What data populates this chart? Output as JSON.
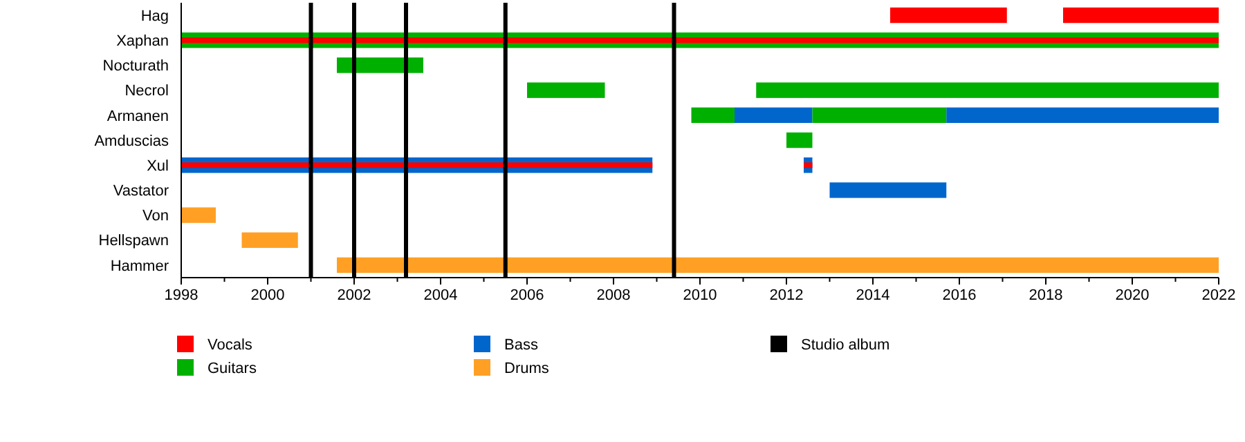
{
  "chart_data": {
    "type": "bar",
    "orientation": "horizontal",
    "categories": [
      "Hag",
      "Xaphan",
      "Nocturath",
      "Necrol",
      "Armanen",
      "Amduscias",
      "Xul",
      "Vastator",
      "Von",
      "Hellspawn",
      "Hammer"
    ],
    "series": [
      {
        "name": "Vocals",
        "color": "#ff0000",
        "values": [
          2.7,
          24,
          null,
          null,
          null,
          null,
          10.9,
          null,
          null,
          null,
          null
        ],
        "base": [
          2014.4,
          1998,
          null,
          null,
          null,
          null,
          1998,
          null,
          null,
          null,
          null
        ]
      },
      {
        "name": "Guitars",
        "color": "#00b000",
        "values": [
          null,
          24,
          2.0,
          1.8,
          1.0,
          0.6,
          null,
          null,
          null,
          null,
          null
        ],
        "base": [
          null,
          1998,
          2001.6,
          2006.0,
          2009.8,
          2012.0,
          null,
          null,
          null,
          null,
          null
        ]
      },
      {
        "name": "Bass",
        "color": "#0066cc",
        "values": [
          null,
          null,
          null,
          null,
          1.8,
          null,
          10.9,
          2.7,
          null,
          null,
          null
        ],
        "base": [
          null,
          null,
          null,
          null,
          2010.8,
          null,
          1998,
          2013.0,
          null,
          null,
          null
        ]
      },
      {
        "name": "Drums",
        "color": "#ffa024",
        "values": [
          null,
          null,
          null,
          null,
          null,
          null,
          null,
          null,
          0.8,
          1.3,
          20.4
        ],
        "base": [
          null,
          null,
          null,
          null,
          null,
          null,
          null,
          null,
          1998,
          1999.4,
          2001.6
        ]
      },
      {
        "color": "#ff0000",
        "values": [
          3.6,
          null,
          null,
          null,
          null,
          null,
          0.2,
          null,
          null,
          null,
          null
        ],
        "base": [
          2018.4,
          null,
          null,
          null,
          null,
          null,
          2012.4,
          null,
          null,
          null,
          null
        ]
      },
      {
        "color": "#00b000",
        "values": [
          null,
          null,
          null,
          10.7,
          3.1,
          null,
          null,
          null,
          null,
          null,
          null
        ],
        "base": [
          null,
          null,
          null,
          2011.3,
          2012.6,
          null,
          null,
          null,
          null,
          null,
          null
        ]
      },
      {
        "color": "#0066cc",
        "values": [
          null,
          null,
          null,
          null,
          6.3,
          null,
          0.2,
          null,
          null,
          null,
          null
        ],
        "base": [
          null,
          null,
          null,
          null,
          2015.7,
          null,
          2012.4,
          null,
          null,
          null,
          null
        ]
      }
    ],
    "xlim": [
      1998,
      2022
    ],
    "xticks": [
      1998,
      {
        "value": 1999,
        "label": null
      },
      2000,
      {
        "value": 2001,
        "label": null
      },
      2002,
      {
        "value": 2003,
        "label": null
      },
      2004,
      {
        "value": 2005,
        "label": null
      },
      2006,
      {
        "value": 2007,
        "label": null
      },
      2008,
      {
        "value": 2009,
        "label": null
      },
      2010,
      {
        "value": 2011,
        "label": null
      },
      2012,
      {
        "value": 2013,
        "label": null
      },
      2014,
      {
        "value": 2015,
        "label": null
      },
      2016,
      {
        "value": 2017,
        "label": null
      },
      2018,
      {
        "value": 2019,
        "label": null
      },
      2020,
      {
        "value": 2021,
        "label": null
      },
      2022
    ],
    "ref_lines": [
      {
        "axis": "x",
        "value": 2001.0,
        "label": "Studio album",
        "color": "#000000"
      },
      {
        "axis": "x",
        "value": 2002.0,
        "color": "#000000"
      },
      {
        "axis": "x",
        "value": 2003.2,
        "color": "#000000"
      },
      {
        "axis": "x",
        "value": 2005.5,
        "color": "#000000"
      },
      {
        "axis": "x",
        "value": 2009.4,
        "color": "#000000"
      }
    ],
    "legend": "bottom",
    "grid": false
  }
}
